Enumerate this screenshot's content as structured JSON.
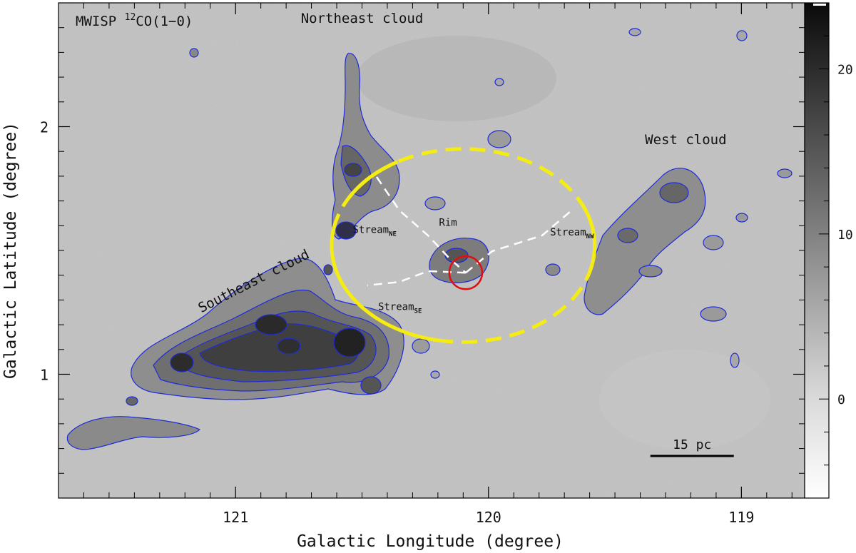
{
  "chart_data": {
    "type": "heatmap",
    "title": "MWISP ¹²CO(1−0)",
    "title_prefix": "MWISP ",
    "title_isotope": "12",
    "title_suffix": "CO(1−0)",
    "xlabel": "Galactic Longitude (degree)",
    "ylabel": "Galactic Latitude (degree)",
    "xlim": [
      121.7,
      118.75
    ],
    "ylim": [
      0.5,
      2.5
    ],
    "x_ticks": [
      121,
      120,
      119
    ],
    "x_tick_labels": [
      "121",
      "120",
      "119"
    ],
    "y_ticks": [
      1,
      2
    ],
    "y_tick_labels": [
      "1",
      "2"
    ],
    "colorbar": {
      "range": [
        -6,
        24
      ],
      "ticks": [
        0,
        10,
        20
      ],
      "tick_labels": [
        "0",
        "10",
        "20"
      ],
      "colormap": "grayscale"
    },
    "contour_color": "#1f2bd8",
    "regions": [
      {
        "name": "Northeast cloud",
        "label": "Northeast cloud",
        "l": 120.5,
        "b": 2.42
      },
      {
        "name": "West cloud",
        "label": "West cloud",
        "l": 119.22,
        "b": 1.93
      },
      {
        "name": "Southeast cloud",
        "label": "Southeast cloud",
        "l": 120.92,
        "b": 1.36,
        "angle": -27
      }
    ],
    "annotations": [
      {
        "label": "Rim",
        "l": 120.16,
        "b": 1.6
      },
      {
        "label_main": "Stream",
        "label_sub": "NE",
        "l": 120.45,
        "b": 1.57
      },
      {
        "label_main": "Stream",
        "label_sub": "NW",
        "l": 119.67,
        "b": 1.56
      },
      {
        "label_main": "Stream",
        "label_sub": "SE",
        "l": 120.35,
        "b": 1.26
      }
    ],
    "shell_ellipse": {
      "center_l": 120.1,
      "center_b": 1.52,
      "semi_l": 0.52,
      "semi_b": 0.39,
      "color": "#f5ec12"
    },
    "source_circle": {
      "center_l": 120.09,
      "center_b": 1.41,
      "radius_deg": 0.065,
      "color": "#e01010"
    },
    "scale_bar": {
      "label": "15 pc",
      "l_start": 119.36,
      "l_end": 119.03,
      "b": 0.67
    }
  },
  "colors": {
    "background_gray": "#bcbcbc",
    "contour": "#1f2bd8",
    "ellipse": "#f5ec12",
    "circle": "#e01010",
    "streams": "#ffffff"
  }
}
